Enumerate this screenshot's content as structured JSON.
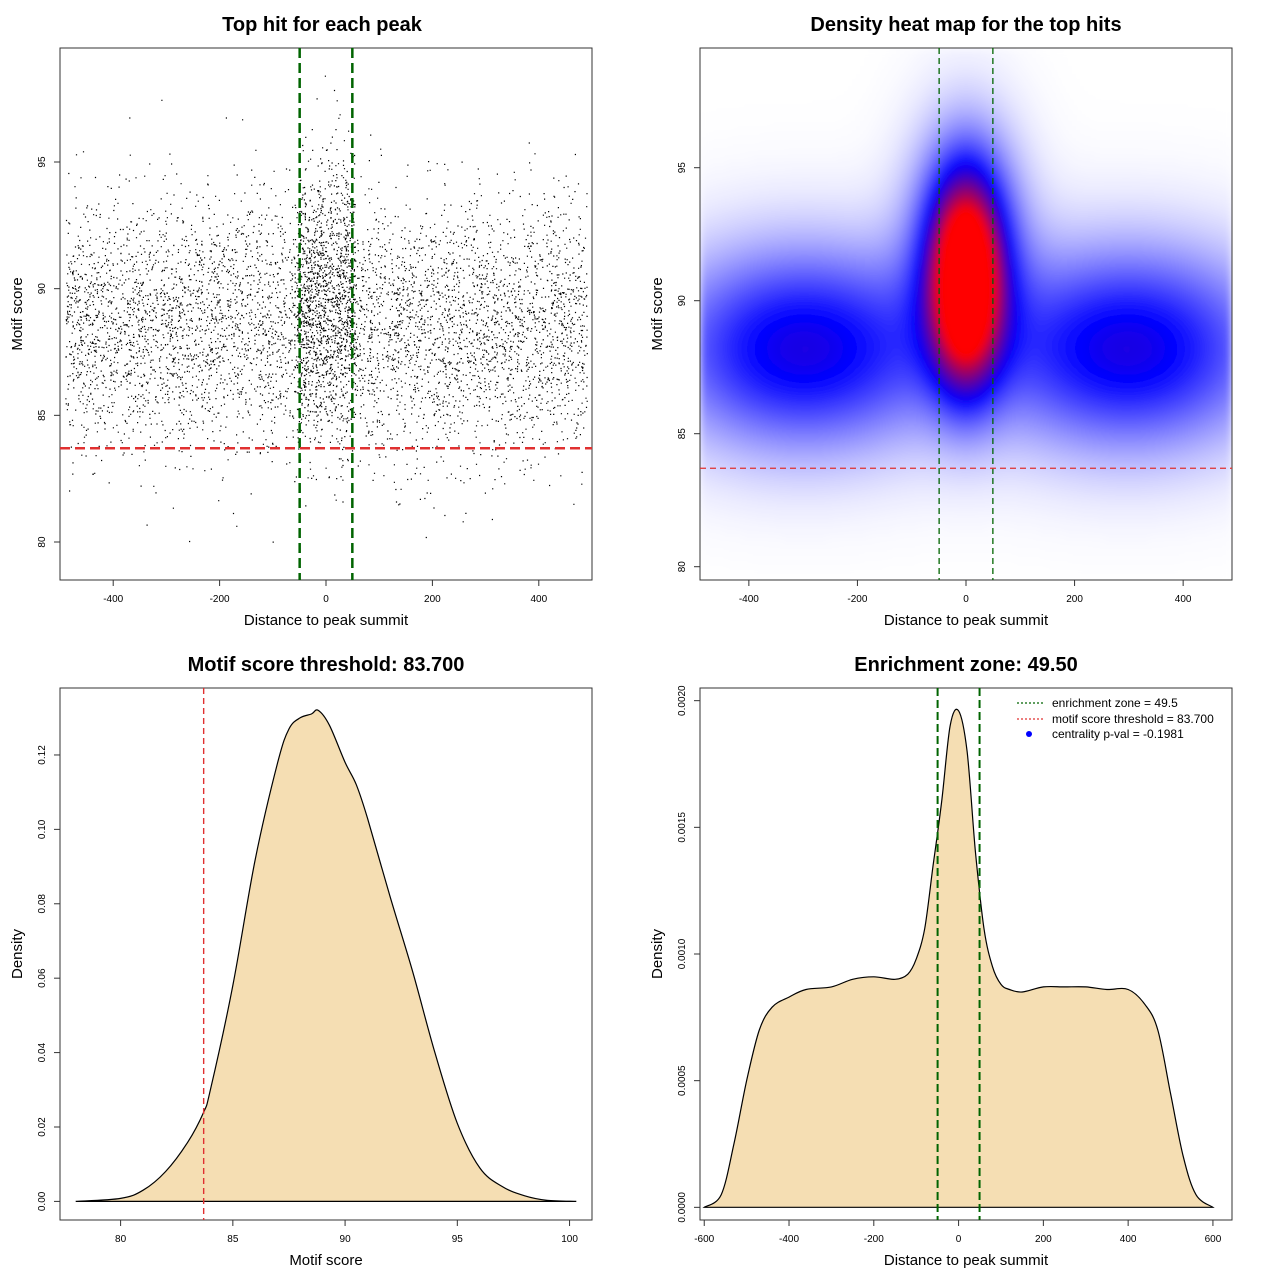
{
  "chart_data": [
    {
      "type": "scatter",
      "title": "Top hit for each peak",
      "xlabel": "Distance to peak summit",
      "ylabel": "Motif score",
      "xlim": [
        -500,
        500
      ],
      "ylim": [
        78.5,
        99.5
      ],
      "xticks": [
        -400,
        -200,
        0,
        200,
        400
      ],
      "yticks": [
        80,
        85,
        90,
        95
      ],
      "points_summary": {
        "approx_count": 9000,
        "x_range": [
          -490,
          490
        ],
        "y_range": [
          79.5,
          98.5
        ],
        "background_center_y": 88.5,
        "central_cluster_x": [
          -50,
          50
        ],
        "central_cluster_y_max": 98.5
      },
      "vlines": [
        -49.5,
        49.5
      ],
      "vline_color": "#006400",
      "hline": 83.7,
      "hline_color": "#e03030"
    },
    {
      "type": "heatmap",
      "title": "Density heat map for the top hits",
      "xlabel": "Distance to peak summit",
      "ylabel": "Motif score",
      "xlim": [
        -490,
        490
      ],
      "ylim": [
        79.5,
        99.5
      ],
      "xticks": [
        -400,
        -200,
        0,
        200,
        400
      ],
      "yticks": [
        80,
        85,
        90,
        95
      ],
      "colors": [
        "#ffffff",
        "#0000ff",
        "#ff0000"
      ],
      "density_blobs": [
        {
          "x": 0,
          "y": 90.5,
          "sx": 45,
          "sy": 2.6,
          "weight": 1.0
        },
        {
          "x": 0,
          "y": 92.5,
          "sx": 70,
          "sy": 2.8,
          "weight": 0.45
        },
        {
          "x": -300,
          "y": 88.2,
          "sx": 180,
          "sy": 2.6,
          "weight": 0.55
        },
        {
          "x": 300,
          "y": 88.2,
          "sx": 180,
          "sy": 2.6,
          "weight": 0.55
        }
      ],
      "vlines": [
        -49.5,
        49.5
      ],
      "vline_color": "#006400",
      "hline": 83.7,
      "hline_color": "#e03030"
    },
    {
      "type": "area",
      "title": "Motif score threshold: 83.700",
      "xlabel": "Motif score",
      "ylabel": "Density",
      "xlim": [
        77.3,
        101
      ],
      "ylim": [
        -0.005,
        0.138
      ],
      "xticks": [
        80,
        85,
        90,
        95,
        100
      ],
      "yticks": [
        0.0,
        0.02,
        0.04,
        0.06,
        0.08,
        0.1,
        0.12
      ],
      "ytick_labels": [
        "0.00",
        "0.02",
        "0.04",
        "0.06",
        "0.08",
        "0.10",
        "0.12"
      ],
      "x": [
        78.0,
        80.0,
        81.0,
        82.0,
        83.0,
        83.7,
        84.0,
        85.0,
        86.0,
        87.0,
        87.5,
        88.0,
        88.5,
        88.8,
        89.3,
        90.0,
        90.5,
        91.0,
        92.0,
        93.0,
        94.0,
        95.0,
        96.0,
        97.0,
        98.0,
        99.0,
        100.3
      ],
      "y": [
        0.0,
        0.0008,
        0.003,
        0.008,
        0.016,
        0.024,
        0.03,
        0.058,
        0.092,
        0.118,
        0.127,
        0.13,
        0.131,
        0.132,
        0.128,
        0.118,
        0.112,
        0.103,
        0.082,
        0.062,
        0.04,
        0.021,
        0.009,
        0.004,
        0.0015,
        0.0003,
        0.0
      ],
      "fill": "#f5deb3",
      "vline": 83.7,
      "vline_color": "#e03030"
    },
    {
      "type": "area",
      "title": "Enrichment zone: 49.50",
      "xlabel": "Distance to peak summit",
      "ylabel": "Density",
      "xlim": [
        -610,
        645
      ],
      "ylim": [
        -5e-05,
        0.00205
      ],
      "xticks": [
        -600,
        -400,
        -200,
        0,
        200,
        400,
        600
      ],
      "yticks": [
        0.0,
        0.0005,
        0.001,
        0.0015,
        0.002
      ],
      "ytick_labels": [
        "0.0000",
        "0.0005",
        "0.0010",
        "0.0015",
        "0.0020"
      ],
      "x": [
        -600,
        -560,
        -530,
        -500,
        -470,
        -440,
        -400,
        -360,
        -300,
        -250,
        -200,
        -150,
        -120,
        -100,
        -80,
        -60,
        -40,
        -20,
        0,
        20,
        40,
        60,
        80,
        100,
        120,
        150,
        200,
        250,
        300,
        350,
        400,
        440,
        470,
        500,
        530,
        560,
        600
      ],
      "y": [
        0.0,
        5e-05,
        0.00025,
        0.0005,
        0.0007,
        0.00079,
        0.00083,
        0.00086,
        0.00087,
        0.0009,
        0.00091,
        0.0009,
        0.00092,
        0.00098,
        0.0011,
        0.00135,
        0.0016,
        0.0019,
        0.00196,
        0.0018,
        0.0014,
        0.0011,
        0.00095,
        0.00088,
        0.00086,
        0.00085,
        0.00087,
        0.00087,
        0.00087,
        0.00086,
        0.00086,
        0.0008,
        0.0007,
        0.00045,
        0.0002,
        5e-05,
        0.0
      ],
      "fill": "#f5deb3",
      "vlines": [
        -49.5,
        49.5
      ],
      "vline_color": "#006400",
      "legend": {
        "position": "top-right",
        "entries": [
          {
            "label": "enrichment zone = 49.5",
            "color": "#006400",
            "style": "dotted-line"
          },
          {
            "label": "motif score threshold = 83.700",
            "color": "#e03030",
            "style": "dotted-line"
          },
          {
            "label": "centrality p-val = -0.1981",
            "color": "#0000ff",
            "style": "point"
          }
        ]
      }
    }
  ]
}
